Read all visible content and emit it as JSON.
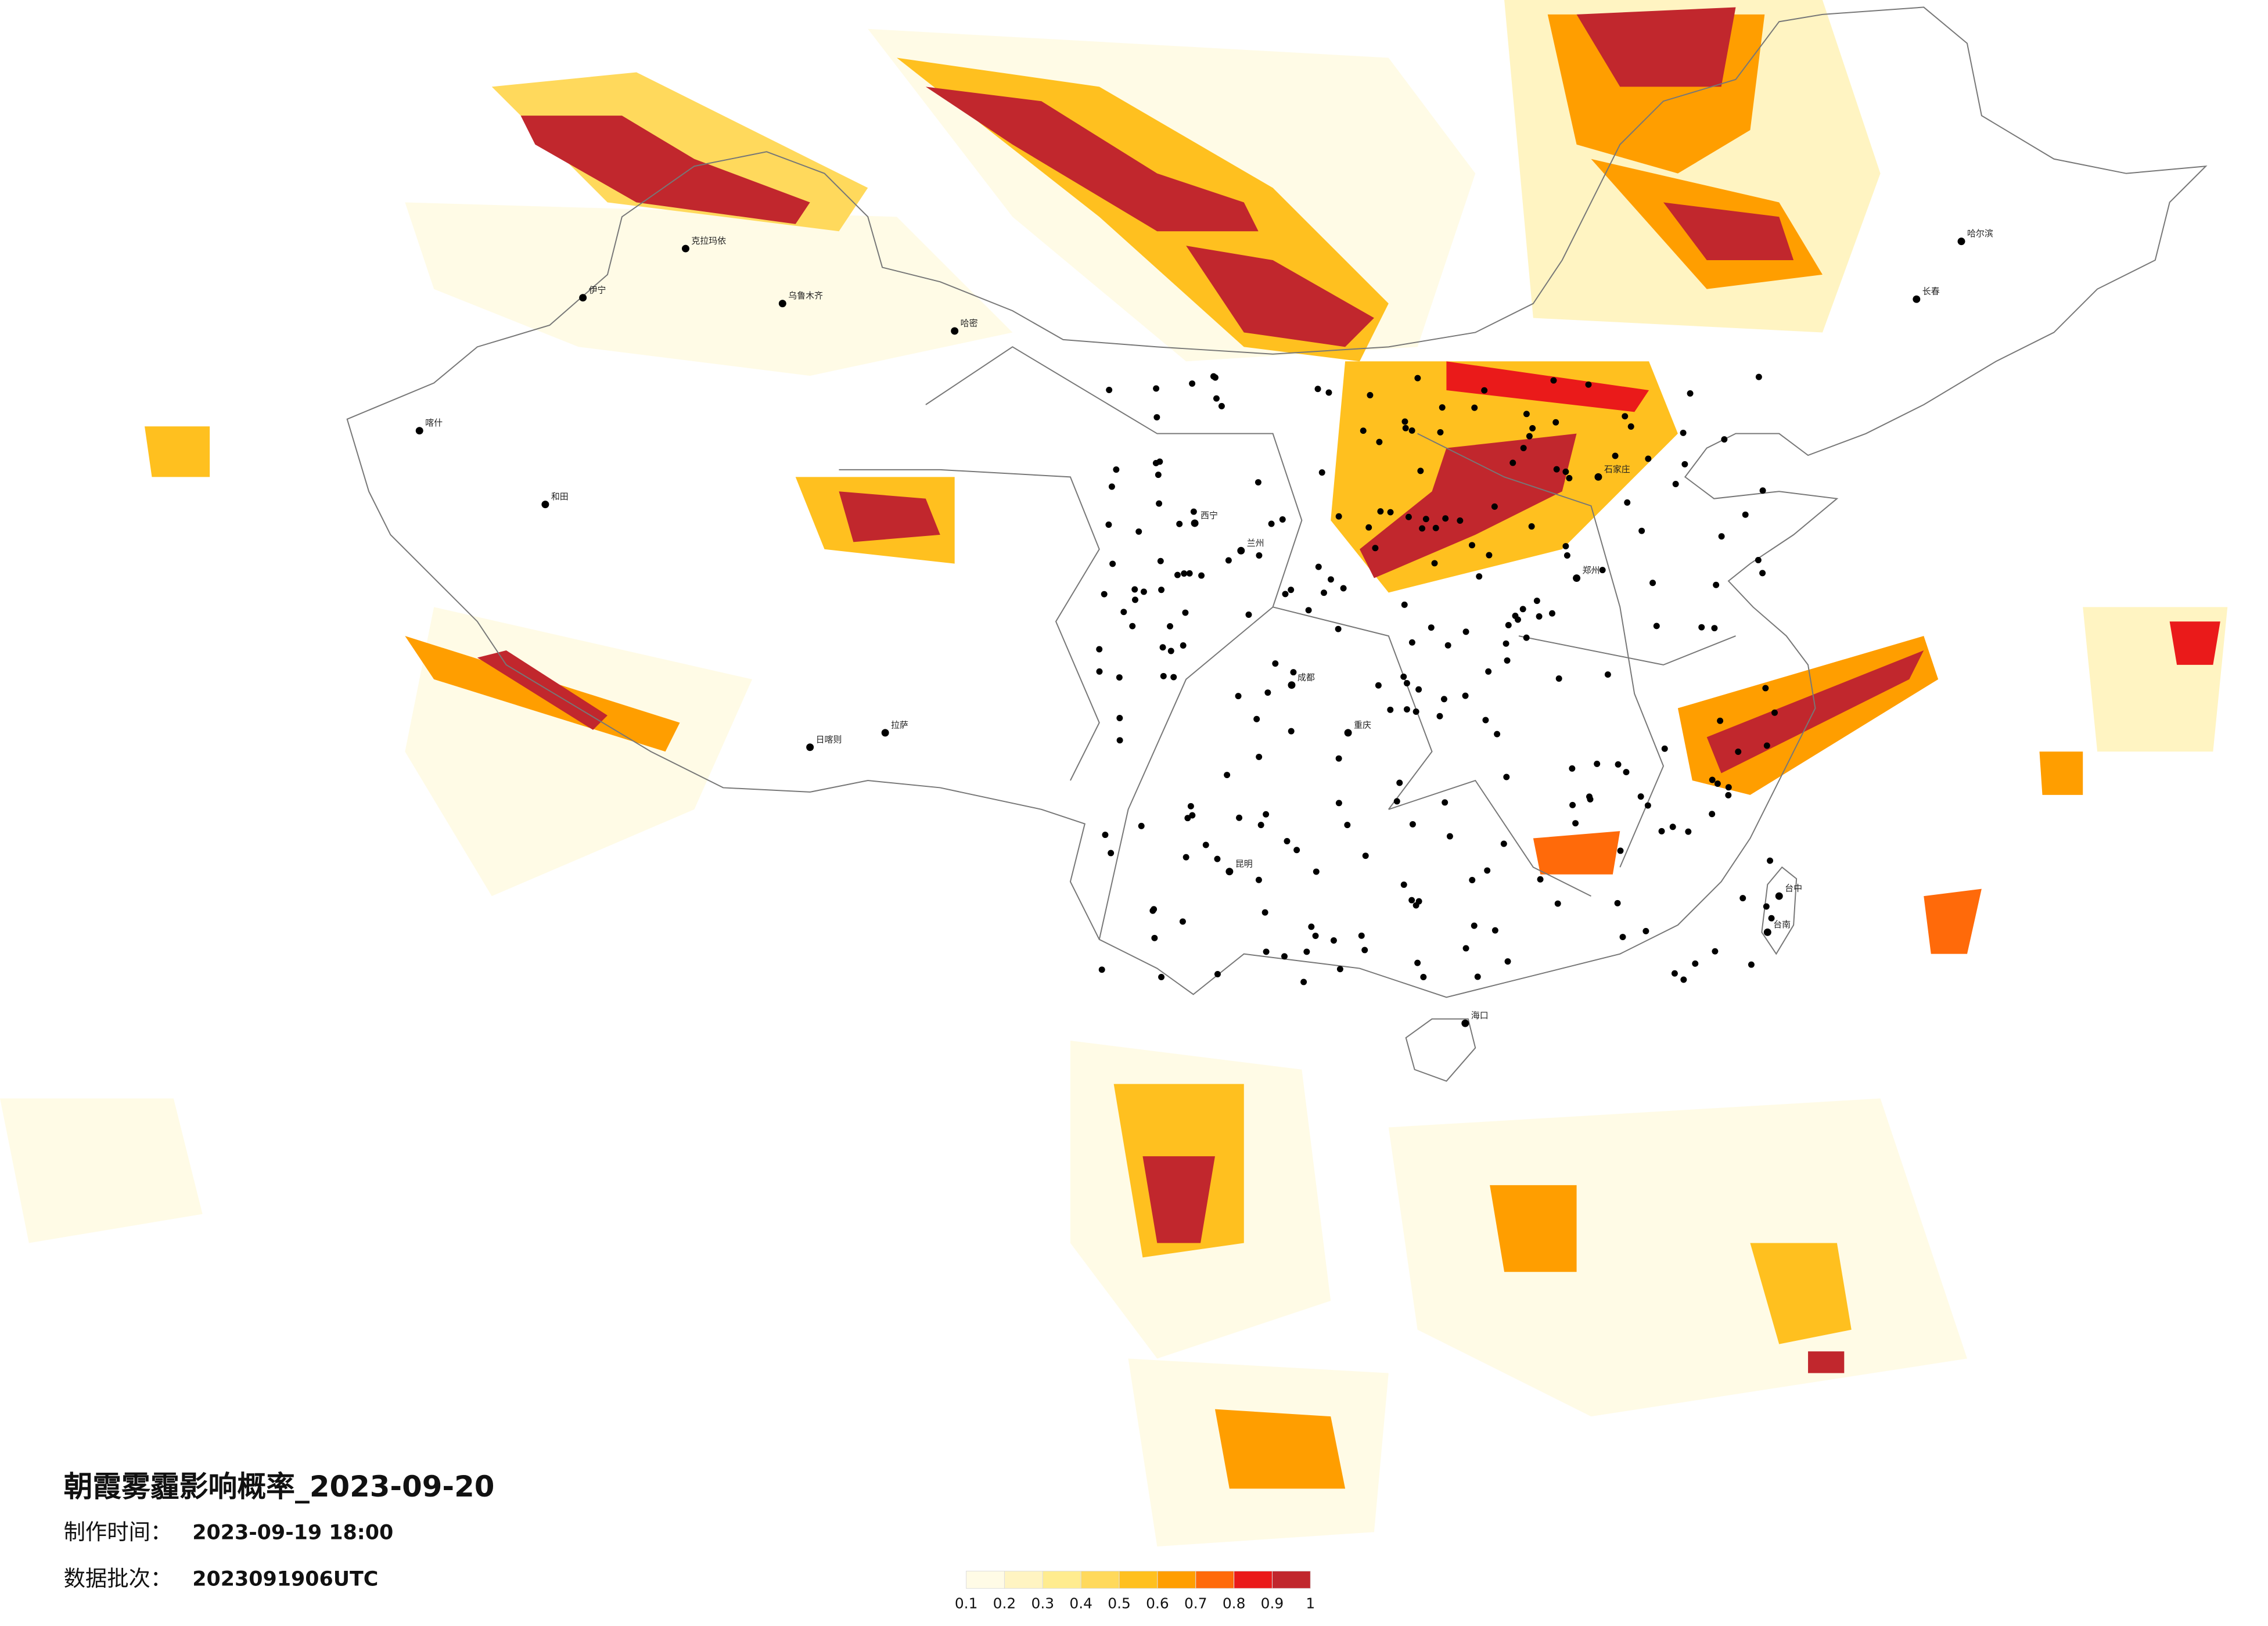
{
  "header": {
    "title": "朝霞雾霾影响概率_2023-09-20",
    "made_label": "制作时间：",
    "made_value": "2023-09-19 18:00",
    "batch_label": "数据批次：",
    "batch_value": "2023091906UTC"
  },
  "legend": {
    "ticks": [
      0.1,
      0.2,
      0.3,
      0.4,
      0.5,
      0.6,
      0.7,
      0.8,
      0.9,
      1
    ],
    "colors": [
      "#fffbe6",
      "#fff4c2",
      "#ffec8f",
      "#ffd95c",
      "#ffc01f",
      "#ff9e00",
      "#ff6a0a",
      "#ea1a1a",
      "#c1272d"
    ]
  },
  "cities": [
    "乌鲁木齐",
    "哈密",
    "喀什",
    "和田",
    "拉萨",
    "西宁",
    "兰州",
    "成都",
    "重庆",
    "昆明",
    "哈尔滨",
    "长春",
    "石家庄",
    "郑州",
    "海口",
    "台中",
    "台南",
    "伊宁",
    "克拉玛依",
    "日喀则"
  ]
}
